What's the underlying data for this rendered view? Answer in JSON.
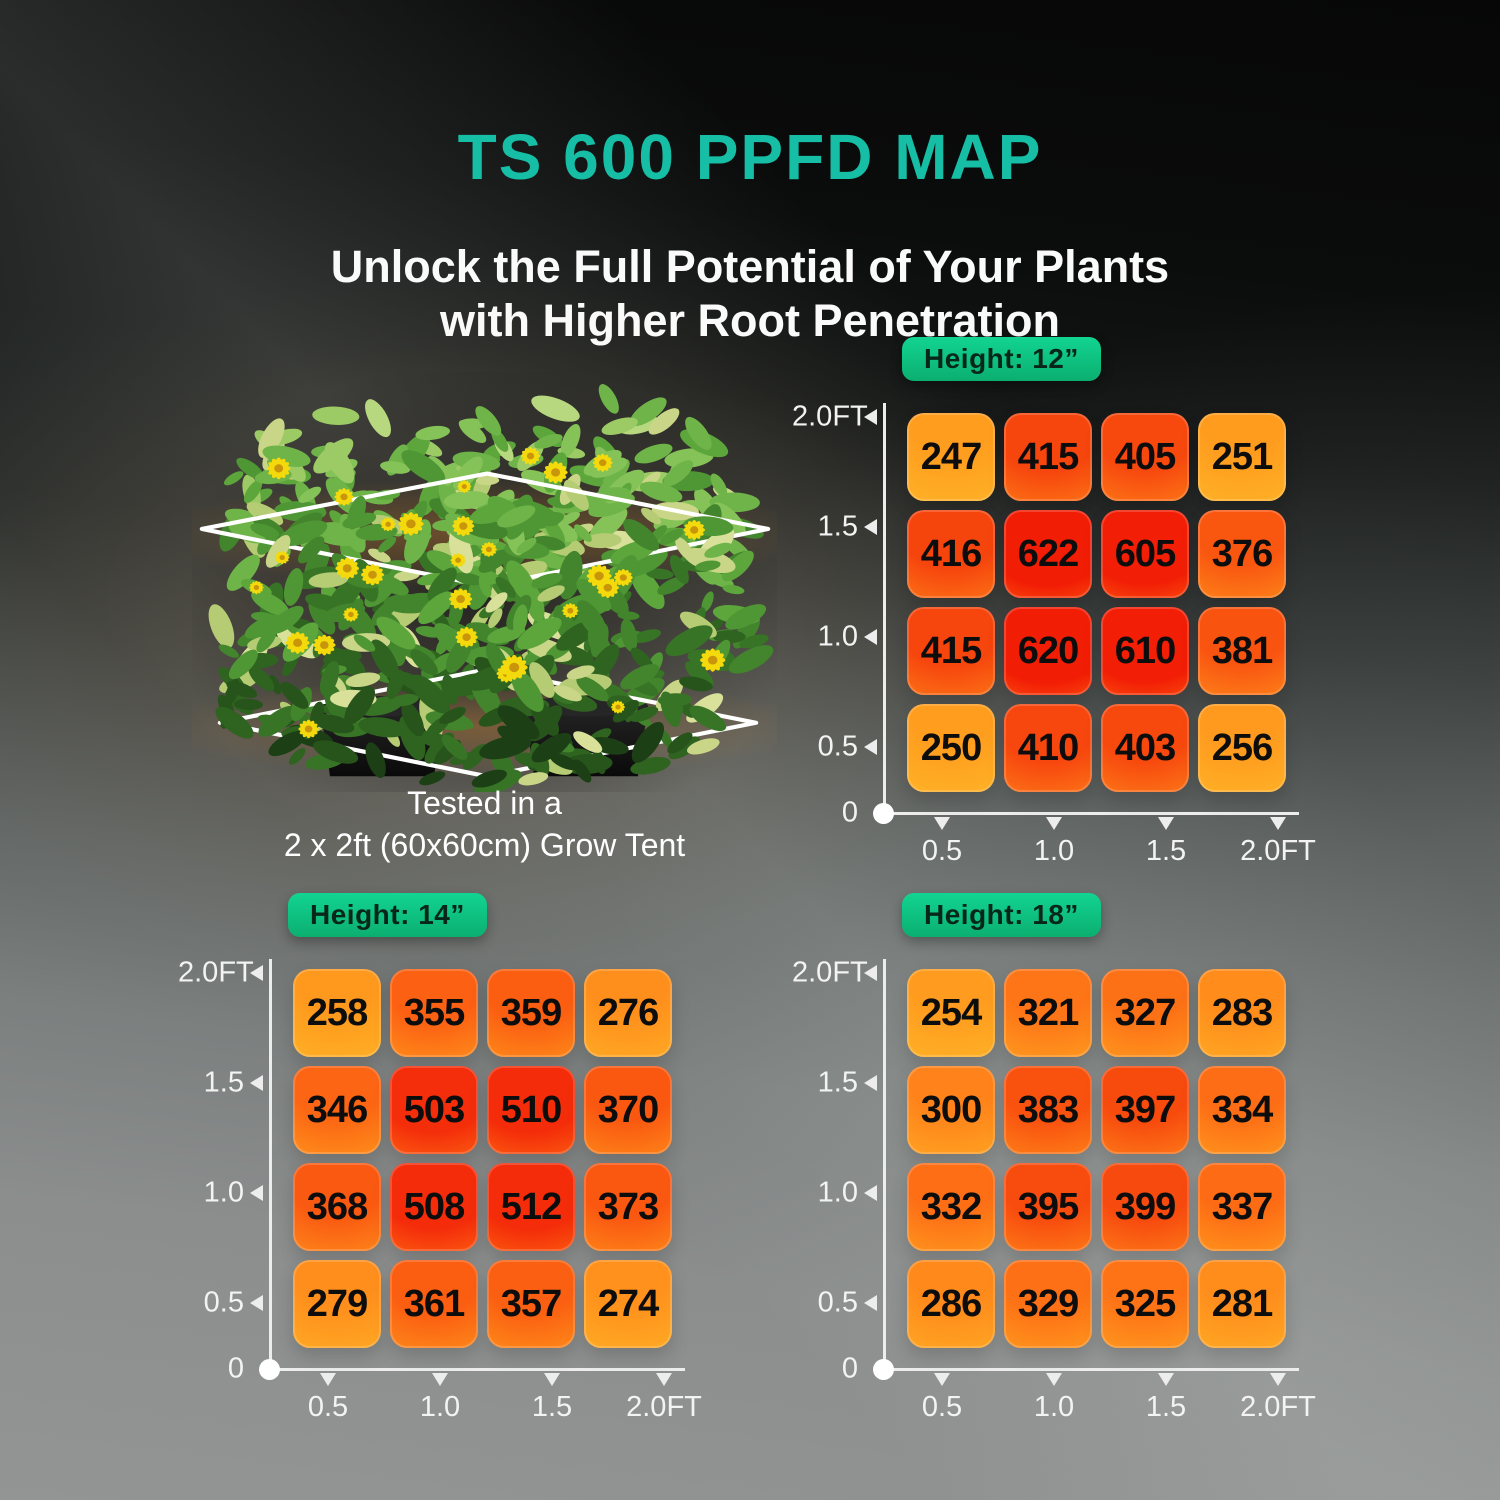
{
  "title": "TS 600 PPFD MAP",
  "subtitle": {
    "line1": "Unlock the Full Potential of Your Plants",
    "line2": "with Higher Root Penetration"
  },
  "tent_caption": {
    "line1": "Tested in a",
    "line2": "2 x 2ft (60x60cm) Grow Tent"
  },
  "axis": {
    "x_labels": [
      "0.5",
      "1.0",
      "1.5",
      "2.0FT"
    ],
    "y_labels": [
      "2.0FT",
      "1.5",
      "1.0",
      "0.5"
    ],
    "origin_label": "0"
  },
  "colors": {
    "title_accent": "#17BEA6",
    "subtitle_text": "#FAFAFA",
    "badge_gradient_top": "#12D492",
    "badge_gradient_bottom": "#0BAF70",
    "badge_text": "#07271B",
    "axis_line": "#ECEDEC",
    "axis_label_text": "#F2F3F2",
    "cell_value_text": "#0D0D0D",
    "heat_scale": {
      "250": [
        "#FF9D1E",
        "#FFBA2A"
      ],
      "300": [
        "#FF831A",
        "#FFAE24"
      ],
      "350": [
        "#FC6212",
        "#FFA01F"
      ],
      "400": [
        "#F74A0E",
        "#FF8C1B"
      ],
      "450": [
        "#F5380C",
        "#FF7E17"
      ],
      "520": [
        "#F42A09",
        "#FF7413"
      ],
      "620": [
        "#F21D05",
        "#FF6B10"
      ]
    }
  },
  "chart_data": [
    {
      "type": "heatmap",
      "title": "Height: 12”",
      "x": [
        "0.5",
        "1.0",
        "1.5",
        "2.0FT"
      ],
      "y": [
        "2.0FT",
        "1.5",
        "1.0",
        "0.5"
      ],
      "values": [
        [
          247,
          415,
          405,
          251
        ],
        [
          416,
          622,
          605,
          376
        ],
        [
          415,
          620,
          610,
          381
        ],
        [
          250,
          410,
          403,
          256
        ]
      ]
    },
    {
      "type": "heatmap",
      "title": "Height: 14”",
      "x": [
        "0.5",
        "1.0",
        "1.5",
        "2.0FT"
      ],
      "y": [
        "2.0FT",
        "1.5",
        "1.0",
        "0.5"
      ],
      "values": [
        [
          258,
          355,
          359,
          276
        ],
        [
          346,
          503,
          510,
          370
        ],
        [
          368,
          508,
          512,
          373
        ],
        [
          279,
          361,
          357,
          274
        ]
      ]
    },
    {
      "type": "heatmap",
      "title": "Height: 18”",
      "x": [
        "0.5",
        "1.0",
        "1.5",
        "2.0FT"
      ],
      "y": [
        "2.0FT",
        "1.5",
        "1.0",
        "0.5"
      ],
      "values": [
        [
          254,
          321,
          327,
          283
        ],
        [
          300,
          383,
          397,
          334
        ],
        [
          332,
          395,
          399,
          337
        ],
        [
          286,
          329,
          325,
          281
        ]
      ]
    }
  ]
}
